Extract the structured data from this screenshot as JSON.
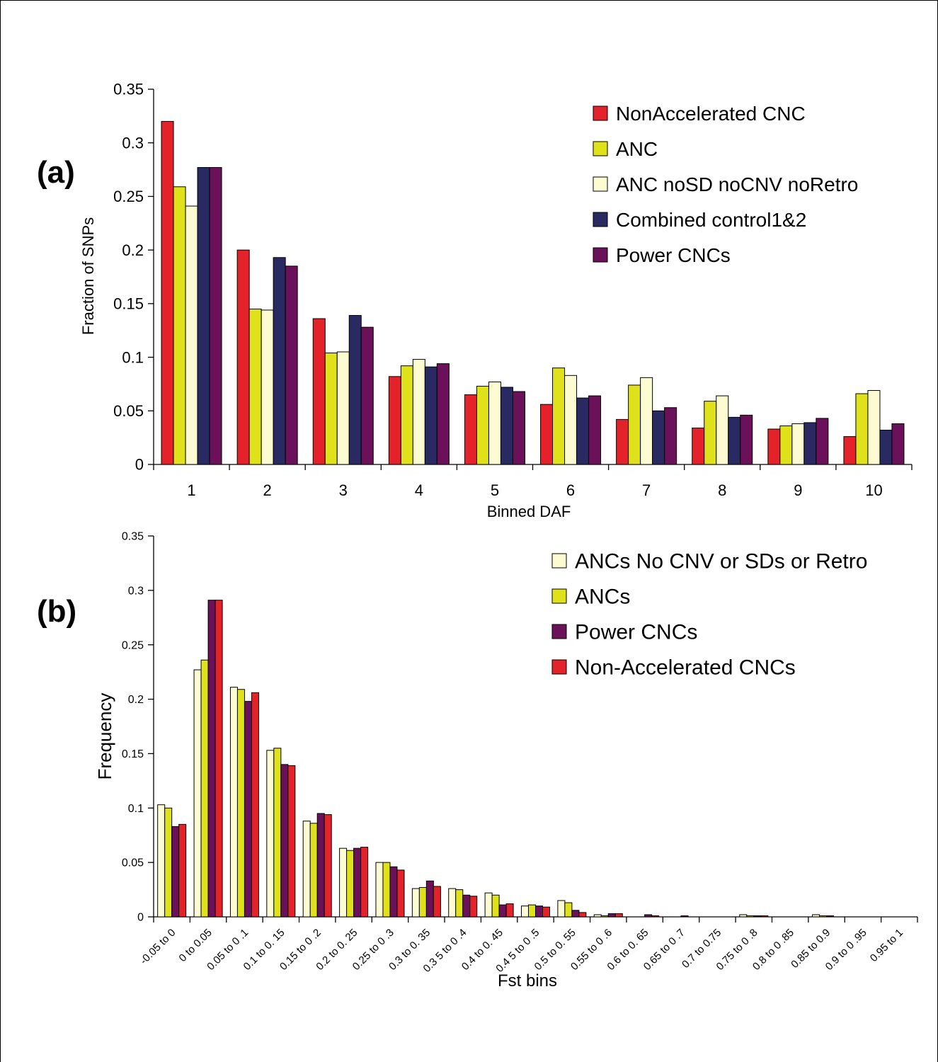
{
  "chart_data": [
    {
      "panel_label": "(a)",
      "type": "bar",
      "xlabel": "Binned DAF",
      "ylabel": "Fraction of SNPs",
      "ylim": [
        0,
        0.35
      ],
      "yticks": [
        "0",
        "0.05",
        "0.1",
        "0.15",
        "0.2",
        "0.25",
        "0.3",
        "0.35"
      ],
      "categories": [
        "1",
        "2",
        "3",
        "4",
        "5",
        "6",
        "7",
        "8",
        "9",
        "10"
      ],
      "legend_position": "top-right",
      "series": [
        {
          "name": "NonAccelerated CNC",
          "color": "#e32229",
          "values": [
            0.32,
            0.2,
            0.136,
            0.082,
            0.065,
            0.056,
            0.042,
            0.034,
            0.033,
            0.026
          ]
        },
        {
          "name": "ANC",
          "color": "#dfe21b",
          "values": [
            0.259,
            0.145,
            0.104,
            0.092,
            0.073,
            0.09,
            0.074,
            0.059,
            0.036,
            0.066
          ]
        },
        {
          "name": "ANC noSD noCNV noRetro",
          "color": "#fdfbd2",
          "values": [
            0.241,
            0.144,
            0.105,
            0.098,
            0.077,
            0.083,
            0.081,
            0.064,
            0.038,
            0.069
          ]
        },
        {
          "name": "Combined control1&2",
          "color": "#2a2a63",
          "values": [
            0.277,
            0.193,
            0.139,
            0.091,
            0.072,
            0.062,
            0.05,
            0.044,
            0.039,
            0.032
          ]
        },
        {
          "name": "Power CNCs",
          "color": "#6a1159",
          "values": [
            0.277,
            0.185,
            0.128,
            0.094,
            0.068,
            0.064,
            0.053,
            0.046,
            0.043,
            0.038
          ]
        }
      ]
    },
    {
      "panel_label": "(b)",
      "type": "bar",
      "xlabel": "Fst bins",
      "ylabel": "Frequency",
      "ylim": [
        0,
        0.35
      ],
      "yticks": [
        "0",
        "0.05",
        "0.1",
        "0.15",
        "0.2",
        "0.25",
        "0.3",
        "0.35"
      ],
      "categories": [
        "-0.05 to 0",
        "0 to 0.05",
        "0.05 to 0 .1",
        "0.1 to 0. 15",
        "0.15 to 0 .2",
        "0.2 to 0. 25",
        "0.25 to 0 .3",
        "0.3 to 0. 35",
        "0.3 5 to 0 .4",
        "0.4 to 0. 45",
        "0.4 5 to 0 .5",
        "0.5 to 0. 55",
        "0.55 to 0 .6",
        "0.6 to 0. 65",
        "0.65 to 0 .7",
        "0.7 to 0.75",
        "0.75 to 0 .8",
        "0.8 to 0 .85",
        "0.85 to 0.9",
        "0.9 to 0 .95",
        "0.95 to 1"
      ],
      "legend_position": "top-right",
      "series": [
        {
          "name": "ANCs No CNV or SDs or Retro",
          "color": "#fdfbd2",
          "values": [
            0.103,
            0.227,
            0.211,
            0.153,
            0.088,
            0.063,
            0.05,
            0.026,
            0.026,
            0.022,
            0.01,
            0.015,
            0.002,
            0,
            0,
            0,
            0.002,
            0,
            0.002,
            0,
            0
          ]
        },
        {
          "name": "ANCs",
          "color": "#dfe21b",
          "values": [
            0.1,
            0.236,
            0.209,
            0.155,
            0.086,
            0.061,
            0.05,
            0.027,
            0.025,
            0.02,
            0.011,
            0.013,
            0.001,
            0,
            0,
            0,
            0.001,
            0,
            0.001,
            0,
            0
          ]
        },
        {
          "name": "Power CNCs",
          "color": "#6a1159",
          "values": [
            0.083,
            0.291,
            0.198,
            0.14,
            0.095,
            0.063,
            0.046,
            0.033,
            0.02,
            0.011,
            0.01,
            0.006,
            0.003,
            0.002,
            0.001,
            0,
            0.001,
            0,
            0.001,
            0,
            0
          ]
        },
        {
          "name": "Non-Accelerated CNCs",
          "color": "#e32229",
          "values": [
            0.085,
            0.291,
            0.206,
            0.139,
            0.094,
            0.064,
            0.043,
            0.028,
            0.019,
            0.012,
            0.009,
            0.004,
            0.003,
            0.001,
            0,
            0,
            0.001,
            0,
            0,
            0,
            0
          ]
        }
      ]
    }
  ]
}
